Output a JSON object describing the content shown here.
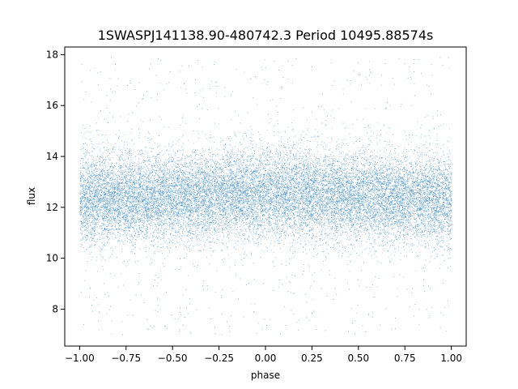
{
  "chart_data": {
    "type": "scatter",
    "title": "1SWASPJ141138.90-480742.3 Period 10495.88574s",
    "xlabel": "phase",
    "ylabel": "flux",
    "xlim": [
      -1.08,
      1.08
    ],
    "ylim": [
      6.55,
      18.3
    ],
    "xticks": [
      -1.0,
      -0.75,
      -0.5,
      -0.25,
      0.0,
      0.25,
      0.5,
      0.75,
      1.0
    ],
    "xtick_labels": [
      "−1.00",
      "−0.75",
      "−0.50",
      "−0.25",
      "0.00",
      "0.25",
      "0.50",
      "0.75",
      "1.00"
    ],
    "yticks": [
      8,
      10,
      12,
      14,
      16,
      18
    ],
    "ytick_labels": [
      "8",
      "10",
      "12",
      "14",
      "16",
      "18"
    ],
    "grid": false,
    "marker_color": "#1f77b4",
    "series": [
      {
        "phase_range": [
          -1.0,
          1.0
        ],
        "flux_center": 12.4,
        "flux_core_range": [
          10.5,
          14.5
        ],
        "flux_outlier_range": [
          7.0,
          17.9
        ],
        "phase_profile": [
          {
            "phase": -1.0,
            "flux_center": 12.3
          },
          {
            "phase": -0.5,
            "flux_center": 12.4
          },
          {
            "phase": 0.0,
            "flux_center": 12.6
          },
          {
            "phase": 0.5,
            "flux_center": 12.4
          },
          {
            "phase": 1.0,
            "flux_center": 12.3
          }
        ]
      }
    ]
  }
}
